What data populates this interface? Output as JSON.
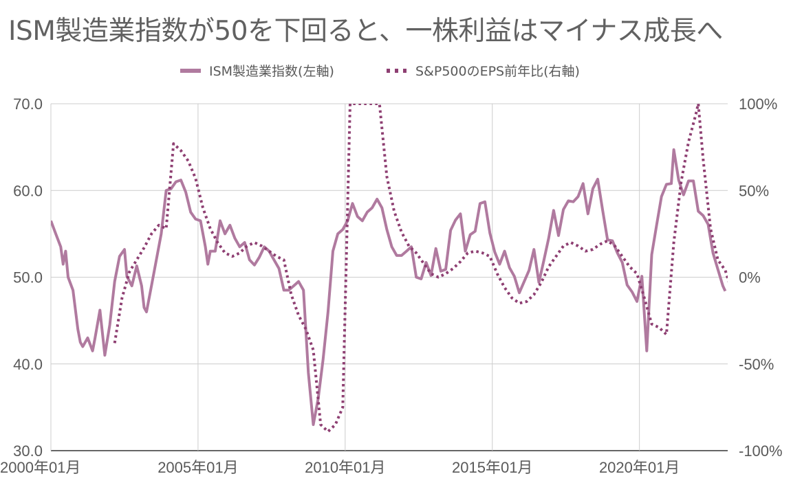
{
  "chart_data": {
    "type": "line",
    "title": "ISM製造業指数が50を下回ると、一株利益はマイナス成長へ",
    "xlabel": "",
    "ylabel": "",
    "x_tick_labels": [
      "2000年01月",
      "2005年01月",
      "2010年01月",
      "2015年01月",
      "2020年01月"
    ],
    "x_range": [
      "2000-01",
      "2023-01"
    ],
    "y_left": {
      "range": [
        30,
        70
      ],
      "ticks": [
        "30.0",
        "40.0",
        "50.0",
        "60.0",
        "70.0"
      ]
    },
    "y_right": {
      "range": [
        -100,
        100
      ],
      "ticks": [
        "-100%",
        "-50%",
        "0%",
        "50%",
        "100%"
      ]
    },
    "grid": true,
    "legend_position": "top",
    "series": [
      {
        "name": "ISM製造業指数(左軸)",
        "axis": "left",
        "style": "solid",
        "color": "#b07a9f",
        "points": [
          [
            "2000-01",
            56.5
          ],
          [
            "2000-03",
            55.0
          ],
          [
            "2000-05",
            53.5
          ],
          [
            "2000-06",
            51.5
          ],
          [
            "2000-07",
            53.0
          ],
          [
            "2000-08",
            50.0
          ],
          [
            "2000-10",
            48.5
          ],
          [
            "2000-12",
            44.0
          ],
          [
            "2001-01",
            42.5
          ],
          [
            "2001-02",
            42.0
          ],
          [
            "2001-04",
            43.0
          ],
          [
            "2001-06",
            41.5
          ],
          [
            "2001-07",
            43.0
          ],
          [
            "2001-09",
            46.2
          ],
          [
            "2001-11",
            41.0
          ],
          [
            "2002-01",
            44.5
          ],
          [
            "2002-03",
            49.5
          ],
          [
            "2002-05",
            52.4
          ],
          [
            "2002-07",
            53.2
          ],
          [
            "2002-08",
            50.1
          ],
          [
            "2002-10",
            49.0
          ],
          [
            "2002-12",
            51.3
          ],
          [
            "2003-02",
            49.0
          ],
          [
            "2003-03",
            46.5
          ],
          [
            "2003-04",
            46.0
          ],
          [
            "2003-06",
            49.0
          ],
          [
            "2003-08",
            52.0
          ],
          [
            "2003-10",
            55.0
          ],
          [
            "2003-12",
            60.0
          ],
          [
            "2004-02",
            60.2
          ],
          [
            "2004-04",
            61.0
          ],
          [
            "2004-06",
            61.2
          ],
          [
            "2004-08",
            59.8
          ],
          [
            "2004-10",
            57.5
          ],
          [
            "2004-12",
            56.7
          ],
          [
            "2005-02",
            56.5
          ],
          [
            "2005-04",
            53.5
          ],
          [
            "2005-05",
            51.5
          ],
          [
            "2005-06",
            53.0
          ],
          [
            "2005-08",
            53.0
          ],
          [
            "2005-10",
            56.5
          ],
          [
            "2005-12",
            55.0
          ],
          [
            "2006-02",
            56.0
          ],
          [
            "2006-04",
            54.5
          ],
          [
            "2006-06",
            53.5
          ],
          [
            "2006-08",
            54.0
          ],
          [
            "2006-10",
            52.0
          ],
          [
            "2006-12",
            51.4
          ],
          [
            "2007-02",
            52.3
          ],
          [
            "2007-04",
            53.5
          ],
          [
            "2007-06",
            53.0
          ],
          [
            "2007-08",
            52.0
          ],
          [
            "2007-10",
            51.0
          ],
          [
            "2007-12",
            48.5
          ],
          [
            "2008-02",
            48.5
          ],
          [
            "2008-04",
            49.0
          ],
          [
            "2008-06",
            49.5
          ],
          [
            "2008-08",
            48.5
          ],
          [
            "2008-10",
            39.0
          ],
          [
            "2008-12",
            33.0
          ],
          [
            "2009-02",
            36.0
          ],
          [
            "2009-04",
            40.5
          ],
          [
            "2009-06",
            46.0
          ],
          [
            "2009-08",
            53.0
          ],
          [
            "2009-10",
            55.0
          ],
          [
            "2009-12",
            55.5
          ],
          [
            "2010-02",
            56.5
          ],
          [
            "2010-04",
            58.5
          ],
          [
            "2010-06",
            57.0
          ],
          [
            "2010-08",
            56.5
          ],
          [
            "2010-10",
            57.5
          ],
          [
            "2010-12",
            58.0
          ],
          [
            "2011-02",
            59.0
          ],
          [
            "2011-04",
            58.0
          ],
          [
            "2011-06",
            55.5
          ],
          [
            "2011-08",
            53.5
          ],
          [
            "2011-10",
            52.5
          ],
          [
            "2011-12",
            52.5
          ],
          [
            "2012-02",
            53.0
          ],
          [
            "2012-04",
            53.5
          ],
          [
            "2012-06",
            50.0
          ],
          [
            "2012-08",
            49.8
          ],
          [
            "2012-10",
            51.7
          ],
          [
            "2012-12",
            50.2
          ],
          [
            "2013-02",
            53.3
          ],
          [
            "2013-04",
            50.7
          ],
          [
            "2013-06",
            50.9
          ],
          [
            "2013-08",
            55.4
          ],
          [
            "2013-10",
            56.6
          ],
          [
            "2013-12",
            57.3
          ],
          [
            "2014-02",
            53.0
          ],
          [
            "2014-04",
            54.9
          ],
          [
            "2014-06",
            55.3
          ],
          [
            "2014-08",
            58.5
          ],
          [
            "2014-10",
            58.7
          ],
          [
            "2014-12",
            55.1
          ],
          [
            "2015-02",
            52.9
          ],
          [
            "2015-04",
            51.5
          ],
          [
            "2015-06",
            53.0
          ],
          [
            "2015-08",
            51.1
          ],
          [
            "2015-10",
            50.1
          ],
          [
            "2015-12",
            48.2
          ],
          [
            "2016-02",
            49.5
          ],
          [
            "2016-04",
            50.8
          ],
          [
            "2016-06",
            53.2
          ],
          [
            "2016-08",
            49.4
          ],
          [
            "2016-10",
            51.9
          ],
          [
            "2016-12",
            54.5
          ],
          [
            "2017-02",
            57.7
          ],
          [
            "2017-04",
            54.8
          ],
          [
            "2017-06",
            57.8
          ],
          [
            "2017-08",
            58.8
          ],
          [
            "2017-10",
            58.7
          ],
          [
            "2017-12",
            59.3
          ],
          [
            "2018-02",
            60.8
          ],
          [
            "2018-04",
            57.3
          ],
          [
            "2018-06",
            60.2
          ],
          [
            "2018-08",
            61.3
          ],
          [
            "2018-10",
            57.7
          ],
          [
            "2018-12",
            54.3
          ],
          [
            "2019-02",
            54.2
          ],
          [
            "2019-04",
            52.8
          ],
          [
            "2019-06",
            51.7
          ],
          [
            "2019-08",
            49.1
          ],
          [
            "2019-10",
            48.3
          ],
          [
            "2019-12",
            47.2
          ],
          [
            "2020-02",
            50.1
          ],
          [
            "2020-04",
            41.5
          ],
          [
            "2020-06",
            52.6
          ],
          [
            "2020-08",
            56.0
          ],
          [
            "2020-10",
            59.3
          ],
          [
            "2020-12",
            60.7
          ],
          [
            "2021-02",
            60.8
          ],
          [
            "2021-03",
            64.7
          ],
          [
            "2021-05",
            61.2
          ],
          [
            "2021-07",
            59.5
          ],
          [
            "2021-09",
            61.1
          ],
          [
            "2021-11",
            61.1
          ],
          [
            "2022-01",
            57.6
          ],
          [
            "2022-03",
            57.1
          ],
          [
            "2022-05",
            56.1
          ],
          [
            "2022-07",
            52.8
          ],
          [
            "2022-09",
            50.9
          ],
          [
            "2022-11",
            49.0
          ],
          [
            "2022-12",
            48.4
          ]
        ]
      },
      {
        "name": "S&P500のEPS前年比(右軸)",
        "axis": "right",
        "style": "dotted",
        "color": "#8e3f72",
        "points": [
          [
            "2002-03",
            -38
          ],
          [
            "2002-06",
            -12
          ],
          [
            "2002-09",
            3
          ],
          [
            "2002-12",
            10
          ],
          [
            "2003-03",
            17
          ],
          [
            "2003-06",
            25
          ],
          [
            "2003-09",
            30
          ],
          [
            "2003-12",
            28
          ],
          [
            "2004-03",
            77
          ],
          [
            "2004-06",
            73
          ],
          [
            "2004-09",
            67
          ],
          [
            "2004-12",
            57
          ],
          [
            "2005-03",
            40
          ],
          [
            "2005-06",
            28
          ],
          [
            "2005-09",
            20
          ],
          [
            "2005-12",
            14
          ],
          [
            "2006-03",
            12
          ],
          [
            "2006-06",
            14
          ],
          [
            "2006-09",
            18
          ],
          [
            "2006-12",
            20
          ],
          [
            "2007-03",
            18
          ],
          [
            "2007-06",
            15
          ],
          [
            "2007-09",
            12
          ],
          [
            "2007-12",
            10
          ],
          [
            "2008-03",
            -10
          ],
          [
            "2008-06",
            -22
          ],
          [
            "2008-09",
            -30
          ],
          [
            "2008-12",
            -42
          ],
          [
            "2009-03",
            -85
          ],
          [
            "2009-06",
            -89
          ],
          [
            "2009-09",
            -85
          ],
          [
            "2009-12",
            -75
          ],
          [
            "2010-03",
            100
          ],
          [
            "2010-06",
            100
          ],
          [
            "2011-03",
            100
          ],
          [
            "2011-06",
            58
          ],
          [
            "2011-09",
            38
          ],
          [
            "2011-12",
            26
          ],
          [
            "2012-03",
            18
          ],
          [
            "2012-06",
            14
          ],
          [
            "2012-09",
            8
          ],
          [
            "2012-12",
            2
          ],
          [
            "2013-03",
            0
          ],
          [
            "2013-06",
            2
          ],
          [
            "2013-09",
            5
          ],
          [
            "2013-12",
            9
          ],
          [
            "2014-03",
            14
          ],
          [
            "2014-06",
            15
          ],
          [
            "2014-09",
            14
          ],
          [
            "2014-12",
            12
          ],
          [
            "2015-03",
            2
          ],
          [
            "2015-06",
            -6
          ],
          [
            "2015-09",
            -12
          ],
          [
            "2015-12",
            -15
          ],
          [
            "2016-03",
            -14
          ],
          [
            "2016-06",
            -10
          ],
          [
            "2016-09",
            -3
          ],
          [
            "2016-12",
            6
          ],
          [
            "2017-03",
            12
          ],
          [
            "2017-06",
            18
          ],
          [
            "2017-09",
            20
          ],
          [
            "2017-12",
            18
          ],
          [
            "2018-03",
            15
          ],
          [
            "2018-06",
            16
          ],
          [
            "2018-09",
            19
          ],
          [
            "2018-12",
            21
          ],
          [
            "2019-03",
            18
          ],
          [
            "2019-06",
            12
          ],
          [
            "2019-09",
            6
          ],
          [
            "2019-12",
            2
          ],
          [
            "2020-03",
            -12
          ],
          [
            "2020-06",
            -27
          ],
          [
            "2020-09",
            -29
          ],
          [
            "2020-12",
            -33
          ],
          [
            "2021-03",
            20
          ],
          [
            "2021-06",
            55
          ],
          [
            "2021-09",
            78
          ],
          [
            "2021-12",
            94
          ],
          [
            "2022-01",
            100
          ],
          [
            "2022-03",
            68
          ],
          [
            "2022-06",
            28
          ],
          [
            "2022-09",
            10
          ],
          [
            "2022-12",
            4
          ],
          [
            "2023-02",
            -5
          ]
        ]
      }
    ]
  }
}
